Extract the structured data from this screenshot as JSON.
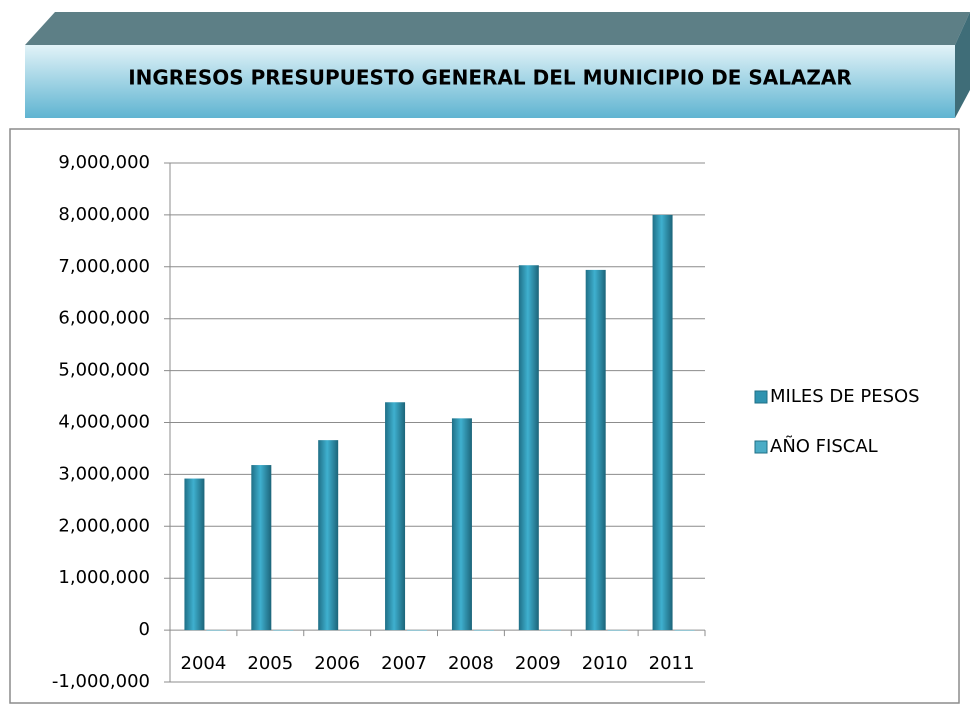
{
  "chart_data": {
    "type": "bar",
    "title": "INGRESOS PRESUPUESTO GENERAL DEL MUNICIPIO DE SALAZAR",
    "categories": [
      "2004",
      "2005",
      "2006",
      "2007",
      "2008",
      "2009",
      "2010",
      "2011"
    ],
    "series": [
      {
        "name": "MILES DE PESOS",
        "color": "#2f93b0",
        "values": [
          2920000,
          3180000,
          3660000,
          4390000,
          4080000,
          7030000,
          6940000,
          8000000
        ]
      },
      {
        "name": "AÑO FISCAL",
        "color": "#4bacc6",
        "values": [
          2004,
          2005,
          2006,
          2007,
          2008,
          2009,
          2010,
          2011
        ]
      }
    ],
    "ylim": [
      -1000000,
      9000000
    ],
    "yticks": [
      {
        "value": -1000000,
        "label": "-1,000,000"
      },
      0,
      {
        "value": 1000000,
        "label": "1,000,000"
      },
      {
        "value": 2000000,
        "label": "2,000,000"
      },
      {
        "value": 3000000,
        "label": "3,000,000"
      },
      {
        "value": 4000000,
        "label": "4,000,000"
      },
      {
        "value": 5000000,
        "label": "5,000,000"
      },
      {
        "value": 6000000,
        "label": "6,000,000"
      },
      {
        "value": 7000000,
        "label": "7,000,000"
      },
      {
        "value": 8000000,
        "label": "8,000,000"
      },
      {
        "value": 9000000,
        "label": "9,000,000"
      }
    ],
    "grid": true,
    "legend": "right"
  }
}
